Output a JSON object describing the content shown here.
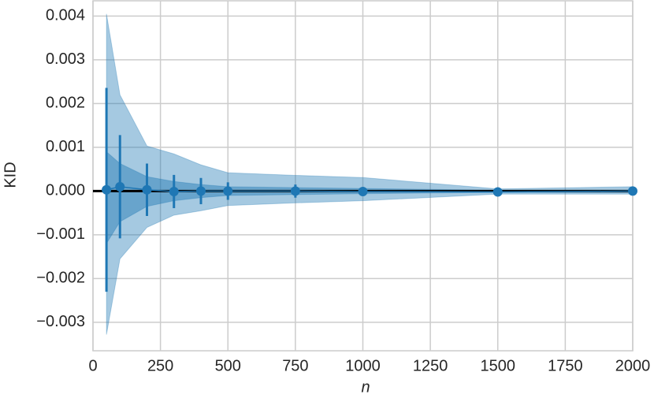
{
  "chart_data": {
    "type": "errorbar",
    "xlabel": "n",
    "ylabel": "KID",
    "x": [
      50,
      100,
      200,
      300,
      400,
      500,
      750,
      1000,
      1500,
      2000
    ],
    "values": [
      3e-05,
      0.0001,
      3e-05,
      -1e-05,
      0,
      0,
      0,
      -1e-05,
      -2e-05,
      0
    ],
    "errors": [
      0.00233,
      0.00118,
      0.0006,
      0.00038,
      0.0003,
      0.0002,
      0.00015,
      8e-05,
      4e-05,
      3e-05
    ],
    "bands": [
      {
        "upper": [
          0.00405,
          0.0022,
          0.00103,
          0.00085,
          0.0006,
          0.00042,
          0.00036,
          0.00031,
          5e-05,
          0.0001
        ],
        "lower": [
          -0.00328,
          -0.00155,
          -0.00083,
          -0.00055,
          -0.00045,
          -0.00033,
          -0.00027,
          -0.00022,
          -7e-05,
          -7e-05
        ],
        "color": "#1f77b4",
        "opacity": 0.4
      },
      {
        "upper": [
          0.0009,
          0.00063,
          0.00033,
          0.00022,
          0.00015,
          0.0001,
          8e-05,
          6e-05,
          2e-05,
          2e-05
        ],
        "lower": [
          -0.0012,
          -0.0007,
          -0.00035,
          -0.00022,
          -0.00015,
          -0.0001,
          -8e-05,
          -6e-05,
          -3e-05,
          -3e-05
        ],
        "color": "#1f77b4",
        "opacity": 0.45
      }
    ],
    "color": "#1f77b4",
    "hline": 0,
    "hline_color": "#000000",
    "xlim": [
      0,
      2000
    ],
    "ylim": [
      -0.00365,
      0.00435
    ],
    "xticks": [
      0,
      250,
      500,
      750,
      1000,
      1250,
      1500,
      1750,
      2000
    ],
    "yticks": [
      {
        "value": -0.003,
        "label": "−0.003"
      },
      {
        "value": -0.002,
        "label": "−0.002"
      },
      {
        "value": -0.001,
        "label": "−0.001"
      },
      {
        "value": 0,
        "label": "0.000"
      },
      0.001,
      0.002,
      0.003,
      0.004
    ],
    "grid": true
  }
}
